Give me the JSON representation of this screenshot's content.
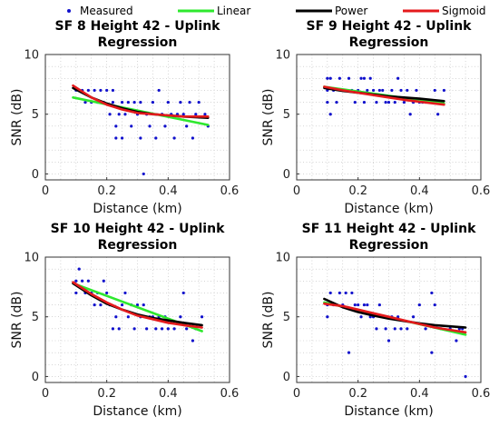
{
  "legend": {
    "placement": "top",
    "entries": [
      {
        "label": "Measured",
        "color": "#1010cc",
        "kind": "marker"
      },
      {
        "label": "Linear",
        "color": "#2ee82e",
        "kind": "line"
      },
      {
        "label": "Power",
        "color": "#000000",
        "kind": "line"
      },
      {
        "label": "Sigmoid",
        "color": "#e41a1c",
        "kind": "line"
      }
    ]
  },
  "chart_data": [
    {
      "type": "scatter",
      "title": "SF 8 Height 42 - Uplink",
      "subtitle": "Regression",
      "xlabel": "Distance (km)",
      "ylabel": "SNR (dB)",
      "xlim": [
        0,
        0.6
      ],
      "ylim": [
        -0.5,
        10
      ],
      "xticks": [
        0,
        0.2,
        0.4,
        0.6
      ],
      "xtick_labels": [
        "0",
        "0.2",
        "0.4",
        "0.6"
      ],
      "yticks": [
        0,
        5,
        10
      ],
      "ytick_labels": [
        "0",
        "5",
        "10"
      ],
      "grid": true,
      "points": [
        [
          0.1,
          7
        ],
        [
          0.11,
          7
        ],
        [
          0.12,
          7
        ],
        [
          0.13,
          6
        ],
        [
          0.14,
          7
        ],
        [
          0.15,
          6
        ],
        [
          0.16,
          7
        ],
        [
          0.17,
          6
        ],
        [
          0.18,
          7
        ],
        [
          0.19,
          6
        ],
        [
          0.2,
          7
        ],
        [
          0.21,
          5
        ],
        [
          0.22,
          7
        ],
        [
          0.22,
          6
        ],
        [
          0.23,
          4
        ],
        [
          0.23,
          3
        ],
        [
          0.24,
          5
        ],
        [
          0.25,
          6
        ],
        [
          0.25,
          3
        ],
        [
          0.26,
          5
        ],
        [
          0.27,
          6
        ],
        [
          0.28,
          4
        ],
        [
          0.29,
          6
        ],
        [
          0.3,
          5
        ],
        [
          0.31,
          6
        ],
        [
          0.31,
          3
        ],
        [
          0.32,
          0
        ],
        [
          0.33,
          5
        ],
        [
          0.34,
          4
        ],
        [
          0.35,
          6
        ],
        [
          0.36,
          3
        ],
        [
          0.37,
          7
        ],
        [
          0.38,
          5
        ],
        [
          0.39,
          4
        ],
        [
          0.4,
          6
        ],
        [
          0.41,
          5
        ],
        [
          0.42,
          3
        ],
        [
          0.43,
          5
        ],
        [
          0.44,
          6
        ],
        [
          0.45,
          5
        ],
        [
          0.46,
          4
        ],
        [
          0.47,
          6
        ],
        [
          0.48,
          3
        ],
        [
          0.49,
          5
        ],
        [
          0.5,
          6
        ],
        [
          0.52,
          5
        ],
        [
          0.53,
          4
        ]
      ],
      "series": [
        {
          "name": "Linear",
          "color": "#2ee82e",
          "x": [
            0.09,
            0.53
          ],
          "y": [
            6.4,
            4.1
          ]
        },
        {
          "name": "Power",
          "color": "#000000",
          "x": [
            0.09,
            0.15,
            0.2,
            0.25,
            0.3,
            0.35,
            0.4,
            0.45,
            0.53
          ],
          "y": [
            7.2,
            6.4,
            5.9,
            5.5,
            5.2,
            5.0,
            4.9,
            4.8,
            4.7
          ]
        },
        {
          "name": "Sigmoid",
          "color": "#e41a1c",
          "x": [
            0.09,
            0.15,
            0.2,
            0.25,
            0.3,
            0.35,
            0.4,
            0.45,
            0.53
          ],
          "y": [
            7.4,
            6.4,
            5.8,
            5.4,
            5.1,
            5.0,
            4.9,
            4.8,
            4.8
          ]
        }
      ]
    },
    {
      "type": "scatter",
      "title": "SF 9 Height 42 - Uplink",
      "subtitle": "Regression",
      "xlabel": "Distance (km)",
      "ylabel": "SNR (dB)",
      "xlim": [
        0,
        0.6
      ],
      "ylim": [
        -0.5,
        10
      ],
      "xticks": [
        0,
        0.2,
        0.4,
        0.6
      ],
      "xtick_labels": [
        "0",
        "0.2",
        "0.4",
        "0.6"
      ],
      "yticks": [
        0,
        5,
        10
      ],
      "ytick_labels": [
        "0",
        "5",
        "10"
      ],
      "grid": true,
      "points": [
        [
          0.1,
          8
        ],
        [
          0.1,
          7
        ],
        [
          0.1,
          6
        ],
        [
          0.11,
          8
        ],
        [
          0.11,
          5
        ],
        [
          0.12,
          7
        ],
        [
          0.13,
          6
        ],
        [
          0.14,
          8
        ],
        [
          0.15,
          7
        ],
        [
          0.16,
          7
        ],
        [
          0.17,
          8
        ],
        [
          0.18,
          7
        ],
        [
          0.19,
          6
        ],
        [
          0.2,
          7
        ],
        [
          0.21,
          8
        ],
        [
          0.22,
          8
        ],
        [
          0.22,
          6
        ],
        [
          0.23,
          7
        ],
        [
          0.24,
          8
        ],
        [
          0.25,
          7
        ],
        [
          0.26,
          6
        ],
        [
          0.27,
          7
        ],
        [
          0.28,
          7
        ],
        [
          0.29,
          6
        ],
        [
          0.3,
          6
        ],
        [
          0.31,
          7
        ],
        [
          0.32,
          6
        ],
        [
          0.33,
          8
        ],
        [
          0.34,
          7
        ],
        [
          0.35,
          6
        ],
        [
          0.36,
          7
        ],
        [
          0.37,
          5
        ],
        [
          0.38,
          6
        ],
        [
          0.39,
          7
        ],
        [
          0.4,
          6
        ],
        [
          0.41,
          6
        ],
        [
          0.42,
          6
        ],
        [
          0.44,
          6
        ],
        [
          0.45,
          7
        ],
        [
          0.46,
          5
        ],
        [
          0.47,
          6
        ],
        [
          0.48,
          7
        ]
      ],
      "series": [
        {
          "name": "Linear",
          "color": "#2ee82e",
          "x": [
            0.09,
            0.48
          ],
          "y": [
            7.3,
            5.9
          ]
        },
        {
          "name": "Power",
          "color": "#000000",
          "x": [
            0.09,
            0.15,
            0.2,
            0.25,
            0.3,
            0.35,
            0.4,
            0.48
          ],
          "y": [
            7.2,
            6.95,
            6.8,
            6.65,
            6.5,
            6.4,
            6.3,
            6.1
          ]
        },
        {
          "name": "Sigmoid",
          "color": "#e41a1c",
          "x": [
            0.09,
            0.15,
            0.2,
            0.25,
            0.3,
            0.35,
            0.4,
            0.48
          ],
          "y": [
            7.3,
            7.0,
            6.8,
            6.6,
            6.4,
            6.2,
            6.05,
            5.8
          ]
        }
      ]
    },
    {
      "type": "scatter",
      "title": "SF 10 Height 42 - Uplink",
      "subtitle": "Regression",
      "xlabel": "Distance (km)",
      "ylabel": "SNR (dB)",
      "xlim": [
        0,
        0.6
      ],
      "ylim": [
        -0.5,
        10
      ],
      "xticks": [
        0,
        0.2,
        0.4,
        0.6
      ],
      "xtick_labels": [
        "0",
        "0.2",
        "0.4",
        "0.6"
      ],
      "yticks": [
        0,
        5,
        10
      ],
      "ytick_labels": [
        "0",
        "5",
        "10"
      ],
      "grid": true,
      "points": [
        [
          0.1,
          8
        ],
        [
          0.1,
          7
        ],
        [
          0.11,
          9
        ],
        [
          0.12,
          8
        ],
        [
          0.13,
          7
        ],
        [
          0.14,
          8
        ],
        [
          0.15,
          7
        ],
        [
          0.16,
          6
        ],
        [
          0.17,
          7
        ],
        [
          0.18,
          6
        ],
        [
          0.19,
          8
        ],
        [
          0.2,
          7
        ],
        [
          0.21,
          6
        ],
        [
          0.22,
          4
        ],
        [
          0.23,
          5
        ],
        [
          0.24,
          4
        ],
        [
          0.25,
          6
        ],
        [
          0.26,
          7
        ],
        [
          0.27,
          5
        ],
        [
          0.28,
          6
        ],
        [
          0.29,
          4
        ],
        [
          0.3,
          6
        ],
        [
          0.31,
          5
        ],
        [
          0.32,
          6
        ],
        [
          0.33,
          4
        ],
        [
          0.34,
          5
        ],
        [
          0.35,
          5
        ],
        [
          0.36,
          4
        ],
        [
          0.37,
          5
        ],
        [
          0.38,
          4
        ],
        [
          0.39,
          5
        ],
        [
          0.4,
          4
        ],
        [
          0.42,
          4
        ],
        [
          0.44,
          5
        ],
        [
          0.45,
          7
        ],
        [
          0.46,
          4
        ],
        [
          0.48,
          3
        ],
        [
          0.49,
          4
        ],
        [
          0.51,
          5
        ]
      ],
      "series": [
        {
          "name": "Linear",
          "color": "#2ee82e",
          "x": [
            0.09,
            0.51
          ],
          "y": [
            7.8,
            3.8
          ]
        },
        {
          "name": "Power",
          "color": "#000000",
          "x": [
            0.09,
            0.15,
            0.2,
            0.25,
            0.3,
            0.35,
            0.4,
            0.45,
            0.51
          ],
          "y": [
            7.8,
            6.8,
            6.1,
            5.6,
            5.2,
            4.9,
            4.7,
            4.5,
            4.3
          ]
        },
        {
          "name": "Sigmoid",
          "color": "#e41a1c",
          "x": [
            0.09,
            0.15,
            0.2,
            0.25,
            0.3,
            0.35,
            0.4,
            0.45,
            0.51
          ],
          "y": [
            7.9,
            6.9,
            6.2,
            5.6,
            5.1,
            4.8,
            4.5,
            4.3,
            4.1
          ]
        }
      ]
    },
    {
      "type": "scatter",
      "title": "SF 11 Height 42 - Uplink",
      "subtitle": "Regression",
      "xlabel": "Distance (km)",
      "ylabel": "SNR (dB)",
      "xlim": [
        0,
        0.6
      ],
      "ylim": [
        -0.5,
        10
      ],
      "xticks": [
        0,
        0.2,
        0.4,
        0.6
      ],
      "xtick_labels": [
        "0",
        "0.2",
        "0.4",
        "0.6"
      ],
      "yticks": [
        0,
        5,
        10
      ],
      "ytick_labels": [
        "0",
        "5",
        "10"
      ],
      "grid": true,
      "points": [
        [
          0.1,
          5
        ],
        [
          0.1,
          6
        ],
        [
          0.11,
          7
        ],
        [
          0.12,
          6
        ],
        [
          0.14,
          7
        ],
        [
          0.15,
          6
        ],
        [
          0.16,
          7
        ],
        [
          0.17,
          2
        ],
        [
          0.18,
          7
        ],
        [
          0.19,
          6
        ],
        [
          0.2,
          6
        ],
        [
          0.21,
          5
        ],
        [
          0.22,
          6
        ],
        [
          0.23,
          6
        ],
        [
          0.24,
          5
        ],
        [
          0.25,
          5
        ],
        [
          0.26,
          4
        ],
        [
          0.27,
          6
        ],
        [
          0.28,
          5
        ],
        [
          0.29,
          4
        ],
        [
          0.3,
          3
        ],
        [
          0.31,
          5
        ],
        [
          0.32,
          4
        ],
        [
          0.33,
          5
        ],
        [
          0.34,
          4
        ],
        [
          0.36,
          4
        ],
        [
          0.38,
          5
        ],
        [
          0.4,
          6
        ],
        [
          0.42,
          4
        ],
        [
          0.44,
          7
        ],
        [
          0.44,
          2
        ],
        [
          0.45,
          6
        ],
        [
          0.47,
          4
        ],
        [
          0.5,
          4
        ],
        [
          0.52,
          3
        ],
        [
          0.53,
          4
        ],
        [
          0.54,
          4
        ],
        [
          0.55,
          0
        ]
      ],
      "series": [
        {
          "name": "Linear",
          "color": "#2ee82e",
          "x": [
            0.09,
            0.55
          ],
          "y": [
            6.2,
            3.5
          ]
        },
        {
          "name": "Power",
          "color": "#000000",
          "x": [
            0.09,
            0.15,
            0.2,
            0.25,
            0.3,
            0.35,
            0.4,
            0.45,
            0.55
          ],
          "y": [
            6.5,
            5.8,
            5.4,
            5.1,
            4.85,
            4.65,
            4.45,
            4.3,
            4.1
          ]
        },
        {
          "name": "Sigmoid",
          "color": "#e41a1c",
          "x": [
            0.09,
            0.15,
            0.2,
            0.25,
            0.3,
            0.35,
            0.4,
            0.45,
            0.55
          ],
          "y": [
            6.1,
            5.9,
            5.6,
            5.3,
            5.0,
            4.7,
            4.4,
            4.1,
            3.7
          ]
        }
      ]
    }
  ]
}
